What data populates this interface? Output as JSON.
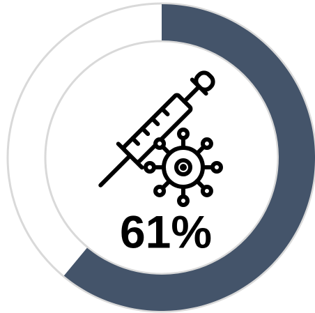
{
  "chart_data": {
    "type": "donut",
    "values": [
      61
    ],
    "value_labels": [
      "61%"
    ],
    "ylim": [
      0,
      100
    ],
    "color": "#44546a",
    "track_color": "#d9d9d9"
  }
}
